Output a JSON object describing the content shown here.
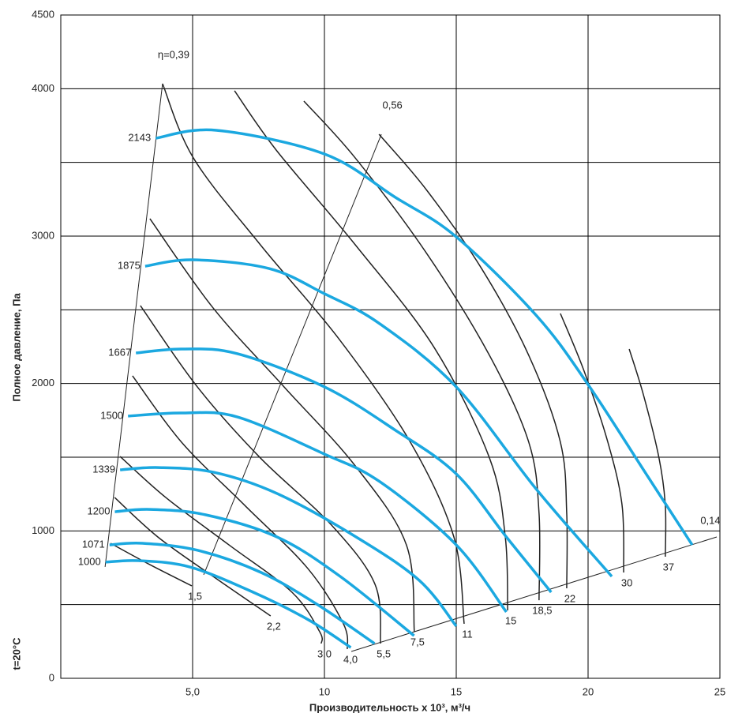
{
  "chart_data": {
    "type": "line",
    "x_label": "Производительность x 10³, м³/ч",
    "y_label": "Полное давление, Па",
    "annotation": "t=20°C",
    "xlim": [
      0,
      25
    ],
    "ylim": [
      0,
      4500
    ],
    "xticks": [
      {
        "value": 5,
        "label": "5,0"
      },
      10,
      15,
      20,
      25
    ],
    "yticks": [
      0,
      1000,
      2000,
      3000,
      4000,
      4500
    ],
    "ygrid": [
      500,
      1500,
      2500,
      3500
    ],
    "grid": true,
    "series": [
      {
        "name": "2143",
        "color": "#1ba8e0",
        "x": [
          3.6,
          5.9,
          10,
          12.7,
          15,
          18.05,
          20,
          22.2,
          23.95
        ],
        "values": [
          3664,
          3718,
          3557,
          3262,
          2995,
          2459,
          1993,
          1387,
          905
        ]
      },
      {
        "name": "1875",
        "color": "#1ba8e0",
        "x": [
          3.2,
          5.0,
          7.9,
          10,
          12.1,
          15,
          18.05,
          20.9
        ],
        "values": [
          2796,
          2839,
          2780,
          2609,
          2405,
          1977,
          1280,
          691
        ]
      },
      {
        "name": "1667",
        "color": "#1ba8e0",
        "x": [
          2.85,
          4.6,
          6.7,
          10,
          12.7,
          15,
          16.9,
          18.6
        ],
        "values": [
          2207,
          2234,
          2202,
          1977,
          1682,
          1387,
          959,
          584
        ]
      },
      {
        "name": "1500",
        "color": "#1ba8e0",
        "x": [
          2.55,
          4.6,
          6.7,
          10,
          12.1,
          15,
          16.9
        ],
        "values": [
          1779,
          1800,
          1773,
          1521,
          1334,
          905,
          450
        ]
      },
      {
        "name": "1339",
        "color": "#1ba8e0",
        "x": [
          2.25,
          3.7,
          5.8,
          8.2,
          11.2,
          13.6,
          15
        ],
        "values": [
          1414,
          1430,
          1398,
          1254,
          959,
          664,
          354
        ]
      },
      {
        "name": "1200",
        "color": "#1ba8e0",
        "x": [
          2.05,
          3.4,
          5.5,
          8.2,
          10.6,
          13.4
        ],
        "values": [
          1130,
          1146,
          1109,
          959,
          691,
          289
        ]
      },
      {
        "name": "1071",
        "color": "#1ba8e0",
        "x": [
          1.85,
          3.1,
          5.2,
          7.6,
          9.7,
          11.9
        ],
        "values": [
          905,
          916,
          868,
          718,
          504,
          236
        ]
      },
      {
        "name": "1000",
        "color": "#1ba8e0",
        "x": [
          1.7,
          2.95,
          4.9,
          7.3,
          9.4,
          11.0
        ],
        "values": [
          788,
          798,
          755,
          584,
          396,
          209
        ]
      }
    ],
    "power_curves": [
      {
        "name": "1,5",
        "color": "#222222",
        "x": [
          1.89,
          3.38,
          4.97
        ],
        "values": [
          916,
          771,
          627
        ]
      },
      {
        "name": "2,2",
        "color": "#222222",
        "x": [
          2.04,
          3.68,
          5.78,
          7.96
        ],
        "values": [
          1227,
          959,
          691,
          423
        ]
      },
      {
        "name": "3,0",
        "color": "#222222",
        "x": [
          2.25,
          3.98,
          6.38,
          8.77,
          9.82,
          9.88
        ],
        "values": [
          1505,
          1227,
          905,
          584,
          316,
          236
        ]
      },
      {
        "name": "4,0",
        "color": "#222222",
        "x": [
          2.72,
          4.58,
          6.98,
          9.37,
          10.72,
          10.87
        ],
        "values": [
          2052,
          1602,
          1173,
          745,
          370,
          198
        ]
      },
      {
        "name": "5,5",
        "color": "#222222",
        "x": [
          3.02,
          5.18,
          7.57,
          10.27,
          11.92,
          12.13
        ],
        "values": [
          2528,
          1977,
          1495,
          1039,
          637,
          236
        ]
      },
      {
        "name": "7,5",
        "color": "#222222",
        "x": [
          3.38,
          5.78,
          8.47,
          11.17,
          13.11,
          13.41
        ],
        "values": [
          3118,
          2512,
          1977,
          1441,
          905,
          316
        ]
      },
      {
        "name": "11",
        "color": "#222222",
        "x": [
          3.86,
          5.03,
          7.57,
          10.57,
          13.26,
          14.91,
          15.3
        ],
        "values": [
          4034,
          3530,
          2941,
          2298,
          1602,
          959,
          370
        ]
      },
      {
        "name": "15",
        "color": "#222222",
        "x": [
          6.59,
          8.17,
          11.17,
          14.16,
          16.26,
          16.86,
          16.95
        ],
        "values": [
          3986,
          3584,
          2941,
          2245,
          1495,
          959,
          461
        ]
      },
      {
        "name": "18,5",
        "color": "#222222",
        "x": [
          9.22,
          11.17,
          13.86,
          16.26,
          17.75,
          18.14,
          18.14
        ],
        "values": [
          3916,
          3530,
          2887,
          2191,
          1602,
          1120,
          530
        ]
      },
      {
        "name": "22",
        "color": "#222222",
        "x": [
          12.07,
          13.86,
          15.96,
          17.75,
          18.95,
          19.19,
          19.19
        ],
        "values": [
          3691,
          3316,
          2780,
          2191,
          1602,
          1120,
          611
        ]
      },
      {
        "name": "30",
        "color": "#222222",
        "x": [
          18.95,
          19.85,
          20.75,
          21.29,
          21.35
        ],
        "values": [
          2475,
          2084,
          1602,
          1173,
          718
        ]
      },
      {
        "name": "37",
        "color": "#222222",
        "x": [
          21.56,
          22.1,
          22.69,
          22.93,
          22.93
        ],
        "values": [
          2234,
          1923,
          1495,
          1173,
          825
        ]
      }
    ],
    "efficiency_lines": [
      {
        "name": "η=0,39",
        "x": [
          3.86,
          1.68
        ],
        "values": [
          4034,
          756
        ]
      },
      {
        "name": "0,56",
        "x": [
          12.16,
          5.42
        ],
        "values": [
          3691,
          702
        ]
      },
      {
        "name": "0,14",
        "x": [
          11.02,
          24.88
        ],
        "values": [
          182,
          959
        ]
      }
    ]
  }
}
